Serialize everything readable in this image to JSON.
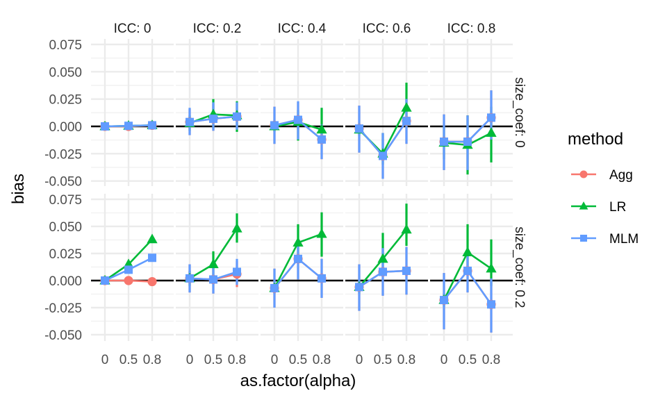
{
  "chart_data": {
    "type": "line",
    "title": "",
    "xlabel": "as.factor(alpha)",
    "ylabel": "bias",
    "x_categories": [
      "0",
      "0.5",
      "0.8"
    ],
    "ylim": [
      -0.055,
      0.08
    ],
    "y_ticks": [
      -0.05,
      -0.025,
      0.0,
      0.025,
      0.05,
      0.075
    ],
    "y_tick_labels": [
      "-0.050",
      "-0.025",
      "0.000",
      "0.025",
      "0.050",
      "0.075"
    ],
    "reference_line": 0.0,
    "grid": true,
    "facet_cols": {
      "name": "ICC",
      "labels": [
        "ICC: 0",
        "ICC: 0.2",
        "ICC: 0.4",
        "ICC: 0.6",
        "ICC: 0.8"
      ]
    },
    "facet_rows": {
      "name": "size_coef",
      "labels": [
        "size_coef: 0",
        "size_coef: 0.2"
      ]
    },
    "legend": {
      "title": "method",
      "position": "right",
      "entries": [
        {
          "name": "Agg",
          "color": "#F8766D",
          "shape": "circle"
        },
        {
          "name": "LR",
          "color": "#00BA38",
          "shape": "triangle"
        },
        {
          "name": "MLM",
          "color": "#619CFF",
          "shape": "square"
        }
      ]
    },
    "panels": [
      {
        "row": 0,
        "col": 0,
        "series": [
          {
            "name": "Agg",
            "values": [
              0.0,
              0.0,
              0.001
            ],
            "lower": [
              -0.001,
              -0.001,
              0.0
            ],
            "upper": [
              0.001,
              0.001,
              0.002
            ]
          },
          {
            "name": "LR",
            "values": [
              0.0,
              0.0005,
              0.001
            ],
            "lower": [
              -0.002,
              -0.002,
              -0.002
            ],
            "upper": [
              0.002,
              0.002,
              0.003
            ]
          },
          {
            "name": "MLM",
            "values": [
              0.0,
              0.0005,
              0.001
            ],
            "lower": [
              -0.002,
              -0.002,
              -0.002
            ],
            "upper": [
              0.002,
              0.002,
              0.003
            ]
          }
        ]
      },
      {
        "row": 0,
        "col": 1,
        "series": [
          {
            "name": "Agg",
            "values": [
              0.004,
              0.007,
              0.009
            ],
            "lower": [
              -0.008,
              -0.004,
              -0.003
            ],
            "upper": [
              0.016,
              0.021,
              0.021
            ]
          },
          {
            "name": "LR",
            "values": [
              0.003,
              0.011,
              0.01
            ],
            "lower": [
              -0.004,
              -0.002,
              -0.005
            ],
            "upper": [
              0.01,
              0.025,
              0.023
            ]
          },
          {
            "name": "MLM",
            "values": [
              0.004,
              0.007,
              0.009
            ],
            "lower": [
              -0.008,
              -0.004,
              -0.003
            ],
            "upper": [
              0.017,
              0.022,
              0.022
            ]
          }
        ]
      },
      {
        "row": 0,
        "col": 2,
        "series": [
          {
            "name": "Agg",
            "values": [
              0.001,
              0.006,
              -0.012
            ],
            "lower": [
              -0.016,
              -0.011,
              -0.03
            ],
            "upper": [
              0.018,
              0.022,
              0.002
            ]
          },
          {
            "name": "LR",
            "values": [
              0.0,
              0.004,
              -0.003
            ],
            "lower": [
              -0.005,
              -0.013,
              -0.01
            ],
            "upper": [
              0.005,
              0.015,
              0.017
            ]
          },
          {
            "name": "MLM",
            "values": [
              0.001,
              0.006,
              -0.012
            ],
            "lower": [
              -0.016,
              -0.012,
              -0.03
            ],
            "upper": [
              0.018,
              0.023,
              0.002
            ]
          }
        ]
      },
      {
        "row": 0,
        "col": 3,
        "series": [
          {
            "name": "Agg",
            "values": [
              -0.002,
              -0.027,
              0.005
            ],
            "lower": [
              -0.024,
              -0.048,
              -0.016
            ],
            "upper": [
              0.019,
              -0.006,
              0.025
            ]
          },
          {
            "name": "LR",
            "values": [
              -0.003,
              -0.025,
              0.017
            ],
            "lower": [
              -0.008,
              -0.035,
              0.0
            ],
            "upper": [
              0.002,
              -0.006,
              0.04
            ]
          },
          {
            "name": "MLM",
            "values": [
              -0.002,
              -0.027,
              0.005
            ],
            "lower": [
              -0.024,
              -0.048,
              -0.016
            ],
            "upper": [
              0.019,
              -0.006,
              0.025
            ]
          }
        ]
      },
      {
        "row": 0,
        "col": 4,
        "series": [
          {
            "name": "Agg",
            "values": [
              -0.014,
              -0.014,
              0.008
            ],
            "lower": [
              -0.04,
              -0.04,
              -0.012
            ],
            "upper": [
              0.011,
              0.01,
              0.033
            ]
          },
          {
            "name": "LR",
            "values": [
              -0.015,
              -0.017,
              -0.006
            ],
            "lower": [
              -0.03,
              -0.044,
              -0.033
            ],
            "upper": [
              0.0,
              0.01,
              0.018
            ]
          },
          {
            "name": "MLM",
            "values": [
              -0.014,
              -0.014,
              0.008
            ],
            "lower": [
              -0.04,
              -0.04,
              -0.012
            ],
            "upper": [
              0.011,
              0.01,
              0.033
            ]
          }
        ]
      },
      {
        "row": 1,
        "col": 0,
        "series": [
          {
            "name": "Agg",
            "values": [
              0.0,
              0.0,
              -0.001
            ],
            "lower": [
              -0.001,
              -0.001,
              -0.002
            ],
            "upper": [
              0.001,
              0.001,
              0.0
            ]
          },
          {
            "name": "LR",
            "values": [
              0.0,
              0.015,
              0.038
            ],
            "lower": [
              -0.001,
              0.014,
              0.037
            ],
            "upper": [
              0.001,
              0.016,
              0.039
            ]
          },
          {
            "name": "MLM",
            "values": [
              0.0,
              0.01,
              0.021
            ],
            "lower": [
              -0.001,
              0.009,
              0.02
            ],
            "upper": [
              0.001,
              0.011,
              0.022
            ]
          }
        ]
      },
      {
        "row": 1,
        "col": 1,
        "series": [
          {
            "name": "Agg",
            "values": [
              0.002,
              0.001,
              0.006
            ],
            "lower": [
              -0.011,
              -0.012,
              -0.006
            ],
            "upper": [
              0.015,
              0.014,
              0.018
            ]
          },
          {
            "name": "LR",
            "values": [
              0.002,
              0.015,
              0.048
            ],
            "lower": [
              -0.005,
              0.003,
              0.035
            ],
            "upper": [
              0.009,
              0.027,
              0.062
            ]
          },
          {
            "name": "MLM",
            "values": [
              0.002,
              0.001,
              0.008
            ],
            "lower": [
              -0.011,
              -0.012,
              -0.004
            ],
            "upper": [
              0.015,
              0.016,
              0.02
            ]
          }
        ]
      },
      {
        "row": 1,
        "col": 2,
        "series": [
          {
            "name": "Agg",
            "values": [
              -0.007,
              0.02,
              0.002
            ],
            "lower": [
              -0.025,
              0.001,
              -0.016
            ],
            "upper": [
              0.011,
              0.037,
              0.02
            ]
          },
          {
            "name": "LR",
            "values": [
              -0.007,
              0.035,
              0.043
            ],
            "lower": [
              -0.012,
              0.02,
              0.022
            ],
            "upper": [
              -0.002,
              0.052,
              0.063
            ]
          },
          {
            "name": "MLM",
            "values": [
              -0.007,
              0.02,
              0.002
            ],
            "lower": [
              -0.025,
              0.001,
              -0.016
            ],
            "upper": [
              0.011,
              0.037,
              0.02
            ]
          }
        ]
      },
      {
        "row": 1,
        "col": 3,
        "series": [
          {
            "name": "Agg",
            "values": [
              -0.006,
              0.008,
              0.009
            ],
            "lower": [
              -0.028,
              -0.014,
              -0.013
            ],
            "upper": [
              0.015,
              0.03,
              0.031
            ]
          },
          {
            "name": "LR",
            "values": [
              -0.006,
              0.02,
              0.047
            ],
            "lower": [
              -0.012,
              0.008,
              0.032
            ],
            "upper": [
              0.0,
              0.044,
              0.071
            ]
          },
          {
            "name": "MLM",
            "values": [
              -0.006,
              0.008,
              0.009
            ],
            "lower": [
              -0.028,
              -0.014,
              -0.013
            ],
            "upper": [
              0.015,
              0.03,
              0.031
            ]
          }
        ]
      },
      {
        "row": 1,
        "col": 4,
        "series": [
          {
            "name": "Agg",
            "values": [
              -0.018,
              0.009,
              -0.022
            ],
            "lower": [
              -0.045,
              -0.011,
              -0.048
            ],
            "upper": [
              0.007,
              0.03,
              0.002
            ]
          },
          {
            "name": "LR",
            "values": [
              -0.018,
              0.026,
              0.011
            ],
            "lower": [
              -0.024,
              0.01,
              -0.005
            ],
            "upper": [
              -0.012,
              0.052,
              0.038
            ]
          },
          {
            "name": "MLM",
            "values": [
              -0.018,
              0.009,
              -0.022
            ],
            "lower": [
              -0.045,
              -0.011,
              -0.048
            ],
            "upper": [
              0.007,
              0.03,
              0.002
            ]
          }
        ]
      }
    ]
  }
}
